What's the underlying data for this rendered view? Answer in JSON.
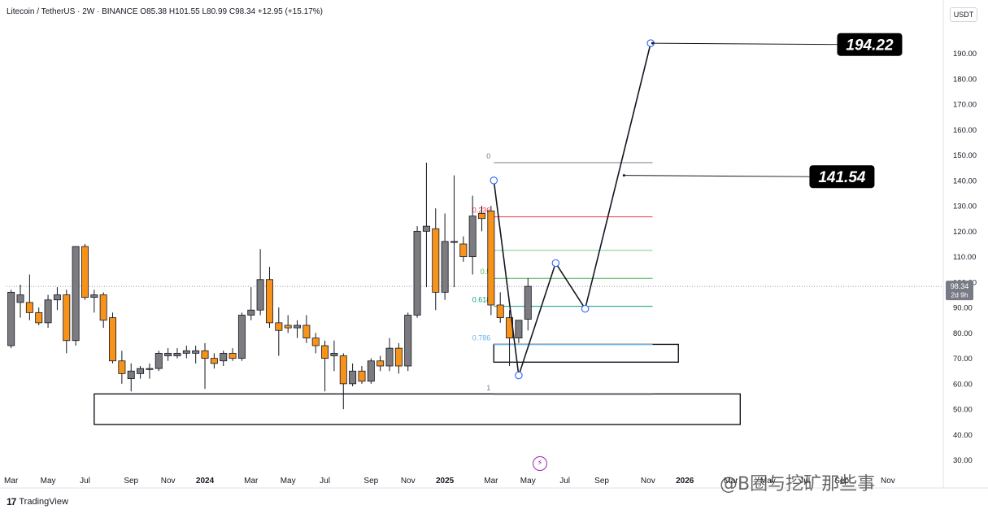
{
  "legend": {
    "text": "Litecoin / TetherUS · 2W · BINANCE  O85.38  H101.55  L80.99  C98.34  +12.95 (+15.17%)"
  },
  "axis_unit": "USDT",
  "price_tag": {
    "value": "98.34",
    "countdown": "2d 9h"
  },
  "branding": {
    "logo_mark": "17",
    "logo_text": "TradingView"
  },
  "watermark": "@B圈与挖矿那些事",
  "colors": {
    "up": "#7b7b80",
    "down": "#f7931a",
    "outline": "#131722",
    "fib_0": "#787b86",
    "fib_0236": "#f23645",
    "fib_0382": "#81c784",
    "fib_05": "#4caf50",
    "fib_0618": "#089981",
    "fib_0786": "#64b5f6",
    "fib_1": "#787b86",
    "price_tag_bg": "#787b86"
  },
  "chart_data": {
    "type": "candlestick",
    "y_axis": {
      "ticks": [
        30,
        40,
        50,
        60,
        70,
        80,
        90,
        100,
        110,
        120,
        130,
        140,
        150,
        160,
        170,
        180,
        190
      ],
      "range": [
        27,
        203
      ],
      "position": "right"
    },
    "x_axis": {
      "labels": [
        {
          "text": "Mar",
          "i": 0
        },
        {
          "text": "May",
          "i": 4
        },
        {
          "text": "Jul",
          "i": 8
        },
        {
          "text": "Sep",
          "i": 13
        },
        {
          "text": "Nov",
          "i": 17
        },
        {
          "text": "2024",
          "i": 21
        },
        {
          "text": "Mar",
          "i": 26
        },
        {
          "text": "May",
          "i": 30
        },
        {
          "text": "Jul",
          "i": 34
        },
        {
          "text": "Sep",
          "i": 39
        },
        {
          "text": "Nov",
          "i": 43
        },
        {
          "text": "2025",
          "i": 47
        },
        {
          "text": "Mar",
          "i": 52
        },
        {
          "text": "May",
          "i": 56
        },
        {
          "text": "Jul",
          "i": 60
        },
        {
          "text": "Sep",
          "i": 64
        },
        {
          "text": "Nov",
          "i": 69
        },
        {
          "text": "2026",
          "i": 73
        },
        {
          "text": "Mar",
          "i": 78
        },
        {
          "text": "May",
          "i": 82
        },
        {
          "text": "Jul",
          "i": 86
        },
        {
          "text": "Sep",
          "i": 90
        },
        {
          "text": "Nov",
          "i": 95
        }
      ],
      "range_i": [
        -0.5,
        101
      ]
    },
    "candles": [
      {
        "o": 75,
        "h": 97,
        "l": 74,
        "c": 96
      },
      {
        "o": 92,
        "h": 99,
        "l": 86,
        "c": 95
      },
      {
        "o": 92,
        "h": 103,
        "l": 85,
        "c": 88
      },
      {
        "o": 88,
        "h": 90,
        "l": 83,
        "c": 84
      },
      {
        "o": 84,
        "h": 95,
        "l": 82,
        "c": 93
      },
      {
        "o": 93,
        "h": 98,
        "l": 89,
        "c": 95
      },
      {
        "o": 95,
        "h": 97,
        "l": 72,
        "c": 77
      },
      {
        "o": 77,
        "h": 114,
        "l": 75,
        "c": 114
      },
      {
        "o": 114,
        "h": 115,
        "l": 93,
        "c": 94
      },
      {
        "o": 94,
        "h": 97,
        "l": 88,
        "c": 95
      },
      {
        "o": 95,
        "h": 96,
        "l": 82,
        "c": 85
      },
      {
        "o": 86,
        "h": 88,
        "l": 68,
        "c": 69
      },
      {
        "o": 69,
        "h": 73,
        "l": 60,
        "c": 64
      },
      {
        "o": 62,
        "h": 68,
        "l": 57,
        "c": 65
      },
      {
        "o": 64,
        "h": 67,
        "l": 62,
        "c": 66
      },
      {
        "o": 66,
        "h": 68,
        "l": 62,
        "c": 66
      },
      {
        "o": 66,
        "h": 73,
        "l": 65,
        "c": 72
      },
      {
        "o": 71,
        "h": 74,
        "l": 69,
        "c": 72
      },
      {
        "o": 71,
        "h": 74,
        "l": 70,
        "c": 72
      },
      {
        "o": 72,
        "h": 75,
        "l": 70,
        "c": 73
      },
      {
        "o": 72,
        "h": 75,
        "l": 68,
        "c": 73
      },
      {
        "o": 73,
        "h": 76,
        "l": 58,
        "c": 70
      },
      {
        "o": 70,
        "h": 72,
        "l": 66,
        "c": 68
      },
      {
        "o": 69,
        "h": 73,
        "l": 67,
        "c": 72
      },
      {
        "o": 72,
        "h": 74,
        "l": 69,
        "c": 70
      },
      {
        "o": 70,
        "h": 88,
        "l": 69,
        "c": 87
      },
      {
        "o": 87,
        "h": 98,
        "l": 85,
        "c": 89
      },
      {
        "o": 89,
        "h": 113,
        "l": 87,
        "c": 101
      },
      {
        "o": 101,
        "h": 106,
        "l": 82,
        "c": 84
      },
      {
        "o": 84,
        "h": 90,
        "l": 71,
        "c": 81
      },
      {
        "o": 83,
        "h": 87,
        "l": 80,
        "c": 82
      },
      {
        "o": 82,
        "h": 85,
        "l": 78,
        "c": 83
      },
      {
        "o": 83,
        "h": 87,
        "l": 76,
        "c": 78
      },
      {
        "o": 78,
        "h": 80,
        "l": 72,
        "c": 75
      },
      {
        "o": 75,
        "h": 77,
        "l": 57,
        "c": 70
      },
      {
        "o": 71,
        "h": 77,
        "l": 65,
        "c": 72
      },
      {
        "o": 71,
        "h": 72,
        "l": 50,
        "c": 60
      },
      {
        "o": 60,
        "h": 68,
        "l": 59,
        "c": 65
      },
      {
        "o": 65,
        "h": 67,
        "l": 60,
        "c": 61
      },
      {
        "o": 61,
        "h": 70,
        "l": 60,
        "c": 69
      },
      {
        "o": 69,
        "h": 71,
        "l": 65,
        "c": 67
      },
      {
        "o": 67,
        "h": 78,
        "l": 65,
        "c": 74
      },
      {
        "o": 74,
        "h": 76,
        "l": 64,
        "c": 67
      },
      {
        "o": 67,
        "h": 88,
        "l": 65,
        "c": 87
      },
      {
        "o": 87,
        "h": 122,
        "l": 86,
        "c": 120
      },
      {
        "o": 120,
        "h": 147,
        "l": 98,
        "c": 122
      },
      {
        "o": 121,
        "h": 129,
        "l": 89,
        "c": 96
      },
      {
        "o": 96,
        "h": 127,
        "l": 93,
        "c": 116
      },
      {
        "o": 116,
        "h": 142,
        "l": 98,
        "c": 116
      },
      {
        "o": 115,
        "h": 118,
        "l": 108,
        "c": 110
      },
      {
        "o": 110,
        "h": 134,
        "l": 103,
        "c": 126
      },
      {
        "o": 127,
        "h": 130,
        "l": 120,
        "c": 125
      },
      {
        "o": 128,
        "h": 130,
        "l": 87,
        "c": 91
      },
      {
        "o": 91,
        "h": 96,
        "l": 84,
        "c": 86
      },
      {
        "o": 86,
        "h": 89,
        "l": 67,
        "c": 78
      },
      {
        "o": 78,
        "h": 84,
        "l": 76,
        "c": 85
      },
      {
        "o": 85.38,
        "h": 101.55,
        "l": 80.99,
        "c": 98.34
      }
    ],
    "fib_retracement": [
      {
        "label": "0",
        "value": 147,
        "color_key": "fib_0"
      },
      {
        "label": "0.236",
        "value": 125.7,
        "color_key": "fib_0236"
      },
      {
        "label": "",
        "value": 112.5,
        "color_key": "fib_0382"
      },
      {
        "label": "0.5",
        "value": 101.5,
        "color_key": "fib_05"
      },
      {
        "label": "0.618",
        "value": 90.5,
        "color_key": "fib_0618"
      },
      {
        "label": "0.786",
        "value": 75.5,
        "color_key": "fib_0786"
      },
      {
        "label": "1",
        "value": 55.8,
        "color_key": "fib_1"
      }
    ],
    "fib_x_range_i": [
      52.3,
      69.5
    ],
    "zones": [
      {
        "name": "support-zone-lower",
        "x_range_i": [
          9,
          79
        ],
        "y_range": [
          44,
          56
        ]
      },
      {
        "name": "support-zone-upper",
        "x_range_i": [
          52.3,
          72.3
        ],
        "y_range": [
          68.5,
          75.5
        ]
      }
    ],
    "projection_path": [
      {
        "i": 52.3,
        "y": 140
      },
      {
        "i": 55,
        "y": 63.3
      },
      {
        "i": 59,
        "y": 107.5
      },
      {
        "i": 62.2,
        "y": 89.5
      },
      {
        "i": 69.3,
        "y": 194
      }
    ],
    "targets": [
      {
        "value": "194.22",
        "from_i": 69.5,
        "from_y": 194,
        "to_i": 89.5,
        "to_y": 193.5
      },
      {
        "value": "141.54",
        "from_i": 66.4,
        "from_y": 142,
        "to_i": 86.5,
        "to_y": 141.5
      }
    ],
    "current_price": 98.34
  }
}
